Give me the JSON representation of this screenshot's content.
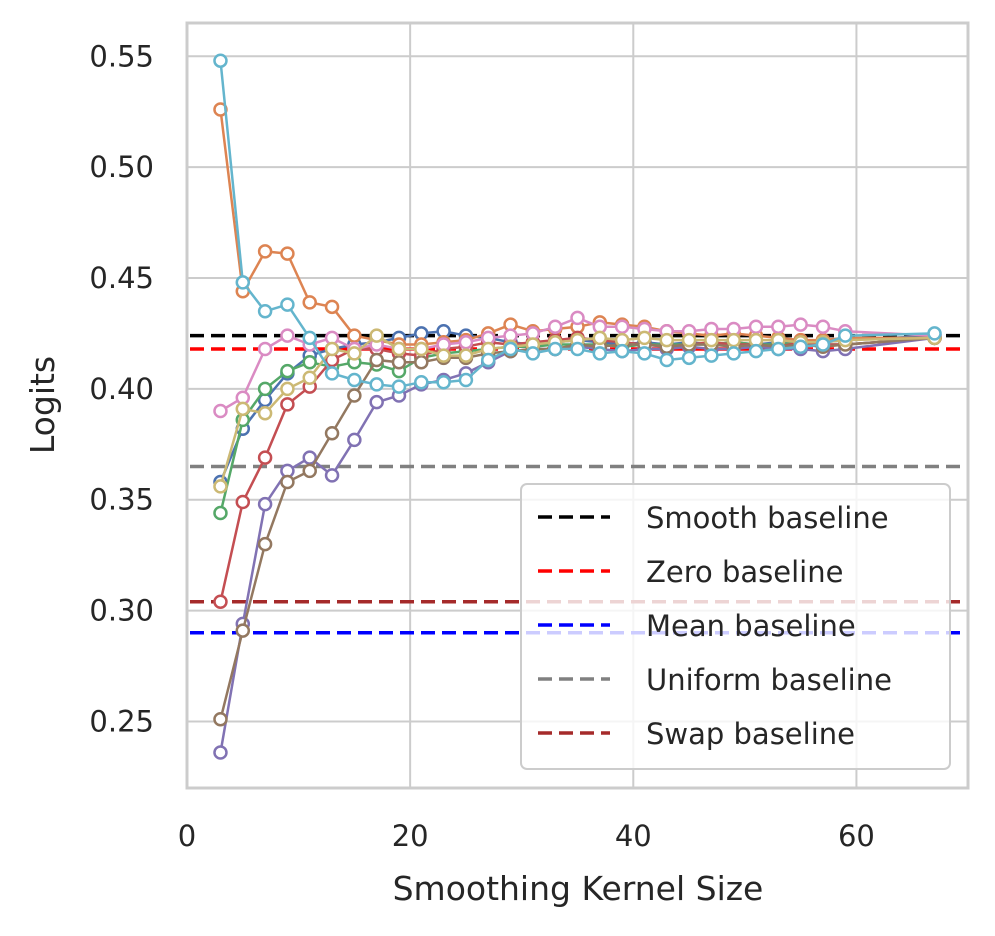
{
  "chart_data": {
    "type": "line",
    "xlabel": "Smoothing Kernel Size",
    "ylabel": "Logits",
    "xlim": [
      0,
      70
    ],
    "ylim": [
      0.22,
      0.565
    ],
    "xticks": [
      0,
      20,
      40,
      60
    ],
    "yticks": [
      0.25,
      0.3,
      0.35,
      0.4,
      0.45,
      0.5,
      0.55
    ],
    "xtick_labels": [
      "0",
      "20",
      "40",
      "60"
    ],
    "ytick_labels": [
      "0.25",
      "0.30",
      "0.35",
      "0.40",
      "0.45",
      "0.50",
      "0.55"
    ],
    "grid": true,
    "legend_position": "lower-right",
    "x": [
      3,
      5,
      7,
      9,
      11,
      13,
      15,
      17,
      19,
      21,
      23,
      25,
      27,
      29,
      31,
      33,
      35,
      37,
      39,
      41,
      43,
      45,
      47,
      49,
      51,
      53,
      55,
      57,
      59,
      67
    ],
    "series": [
      {
        "color": "#4c72b0",
        "values": [
          0.358,
          0.382,
          0.395,
          0.407,
          0.415,
          0.418,
          0.42,
          0.421,
          0.423,
          0.425,
          0.426,
          0.424,
          0.423,
          0.421,
          0.42,
          0.421,
          0.422,
          0.421,
          0.42,
          0.421,
          0.42,
          0.421,
          0.42,
          0.421,
          0.42,
          0.421,
          0.42,
          0.421,
          0.422,
          0.424
        ]
      },
      {
        "color": "#dd8452",
        "values": [
          0.526,
          0.444,
          0.462,
          0.461,
          0.439,
          0.437,
          0.424,
          0.422,
          0.42,
          0.42,
          0.421,
          0.422,
          0.425,
          0.429,
          0.426,
          0.427,
          0.428,
          0.43,
          0.429,
          0.428,
          0.426,
          0.425,
          0.424,
          0.425,
          0.424,
          0.423,
          0.422,
          0.422,
          0.423,
          0.423
        ]
      },
      {
        "color": "#55a868",
        "values": [
          0.344,
          0.386,
          0.4,
          0.408,
          0.412,
          0.41,
          0.412,
          0.411,
          0.408,
          0.414,
          0.416,
          0.417,
          0.418,
          0.419,
          0.419,
          0.42,
          0.42,
          0.42,
          0.419,
          0.42,
          0.42,
          0.42,
          0.42,
          0.421,
          0.42,
          0.42,
          0.421,
          0.42,
          0.42,
          0.423
        ]
      },
      {
        "color": "#c44e52",
        "values": [
          0.304,
          0.349,
          0.369,
          0.393,
          0.401,
          0.413,
          0.418,
          0.418,
          0.416,
          0.415,
          0.418,
          0.419,
          0.421,
          0.42,
          0.421,
          0.422,
          0.423,
          0.422,
          0.421,
          0.42,
          0.419,
          0.42,
          0.421,
          0.42,
          0.42,
          0.419,
          0.421,
          0.42,
          0.42,
          0.423
        ]
      },
      {
        "color": "#8172b3",
        "values": [
          0.236,
          0.294,
          0.348,
          0.363,
          0.369,
          0.361,
          0.377,
          0.394,
          0.397,
          0.402,
          0.404,
          0.407,
          0.412,
          0.417,
          0.418,
          0.418,
          0.419,
          0.418,
          0.417,
          0.418,
          0.418,
          0.419,
          0.418,
          0.418,
          0.419,
          0.418,
          0.418,
          0.417,
          0.418,
          0.423
        ]
      },
      {
        "color": "#937860",
        "values": [
          0.251,
          0.291,
          0.33,
          0.358,
          0.363,
          0.38,
          0.397,
          0.413,
          0.412,
          0.412,
          0.414,
          0.414,
          0.416,
          0.417,
          0.418,
          0.418,
          0.42,
          0.419,
          0.42,
          0.42,
          0.419,
          0.42,
          0.42,
          0.419,
          0.42,
          0.419,
          0.42,
          0.419,
          0.42,
          0.423
        ]
      },
      {
        "color": "#da8bc3",
        "values": [
          0.39,
          0.396,
          0.418,
          0.424,
          0.42,
          0.423,
          0.418,
          0.42,
          0.418,
          0.418,
          0.42,
          0.421,
          0.423,
          0.424,
          0.425,
          0.428,
          0.432,
          0.428,
          0.428,
          0.427,
          0.426,
          0.426,
          0.427,
          0.427,
          0.428,
          0.428,
          0.429,
          0.428,
          0.426,
          0.424
        ]
      },
      {
        "color": "#ccb974",
        "values": [
          0.356,
          0.391,
          0.389,
          0.4,
          0.405,
          0.418,
          0.416,
          0.424,
          0.418,
          0.418,
          0.415,
          0.415,
          0.418,
          0.419,
          0.42,
          0.421,
          0.422,
          0.423,
          0.422,
          0.423,
          0.422,
          0.422,
          0.422,
          0.422,
          0.422,
          0.422,
          0.421,
          0.421,
          0.422,
          0.423
        ]
      },
      {
        "color": "#64b5cd",
        "values": [
          0.548,
          0.448,
          0.435,
          0.438,
          0.423,
          0.407,
          0.404,
          0.402,
          0.401,
          0.403,
          0.403,
          0.404,
          0.413,
          0.418,
          0.416,
          0.418,
          0.418,
          0.416,
          0.417,
          0.416,
          0.413,
          0.414,
          0.415,
          0.416,
          0.417,
          0.418,
          0.419,
          0.42,
          0.424,
          0.425
        ]
      }
    ],
    "baselines": [
      {
        "name": "Smooth baseline",
        "value": 0.424,
        "color": "#000000"
      },
      {
        "name": "Zero baseline",
        "value": 0.418,
        "color": "#ff0000"
      },
      {
        "name": "Mean baseline",
        "value": 0.29,
        "color": "#0000ff"
      },
      {
        "name": "Uniform baseline",
        "value": 0.365,
        "color": "#808080"
      },
      {
        "name": "Swap baseline",
        "value": 0.304,
        "color": "#a52a2a"
      }
    ]
  }
}
